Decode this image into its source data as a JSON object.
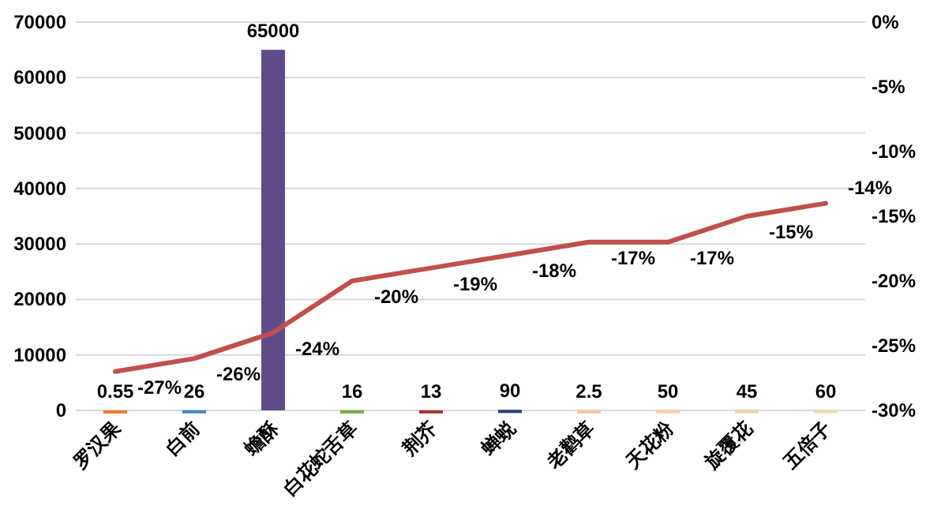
{
  "chart_data": {
    "type": "bar",
    "categories": [
      "罗汉果",
      "白前",
      "蟾酥",
      "白花蛇舌草",
      "荆芥",
      "蝉蜕",
      "老鹳草",
      "天花粉",
      "旋覆花",
      "五倍子"
    ],
    "series": [
      {
        "colors": [
          "#ed7d31",
          "#4a86b8",
          "#5f4b8b",
          "#70ad47",
          "#9e3a3a",
          "#264478",
          "#f2c9a0",
          "#f2d3a8",
          "#f0d2a8",
          "#f2d8b0"
        ],
        "values": [
          0.55,
          26,
          65000,
          16,
          13,
          90,
          2.5,
          50,
          45,
          60
        ],
        "value_labels": [
          "0.55",
          "26",
          "65000",
          "16",
          "13",
          "90",
          "2.5",
          "50",
          "45",
          "60"
        ]
      },
      {
        "type": "line",
        "axis": "y2",
        "color": "#c0504d",
        "values": [
          -27,
          -26,
          -24,
          -20,
          -19,
          -18,
          -17,
          -17,
          -15,
          -14
        ],
        "value_labels": [
          "-27%",
          "-26%",
          "-24%",
          "-20%",
          "-19%",
          "-18%",
          "-17%",
          "-17%",
          "-15%",
          "-14%"
        ]
      }
    ],
    "ylim": [
      0,
      70000
    ],
    "yticks": [
      0,
      10000,
      20000,
      30000,
      40000,
      50000,
      60000,
      70000
    ],
    "y2lim": [
      -30,
      0
    ],
    "y2ticks": [
      {
        "value": -30,
        "label": "-30%"
      },
      {
        "value": -25,
        "label": "-25%"
      },
      {
        "value": -20,
        "label": "-20%"
      },
      {
        "value": -15,
        "label": "-15%"
      },
      {
        "value": -10,
        "label": "-10%"
      },
      {
        "value": -5,
        "label": "-5%"
      },
      {
        "value": 0,
        "label": "0%"
      }
    ],
    "grid": "y"
  }
}
